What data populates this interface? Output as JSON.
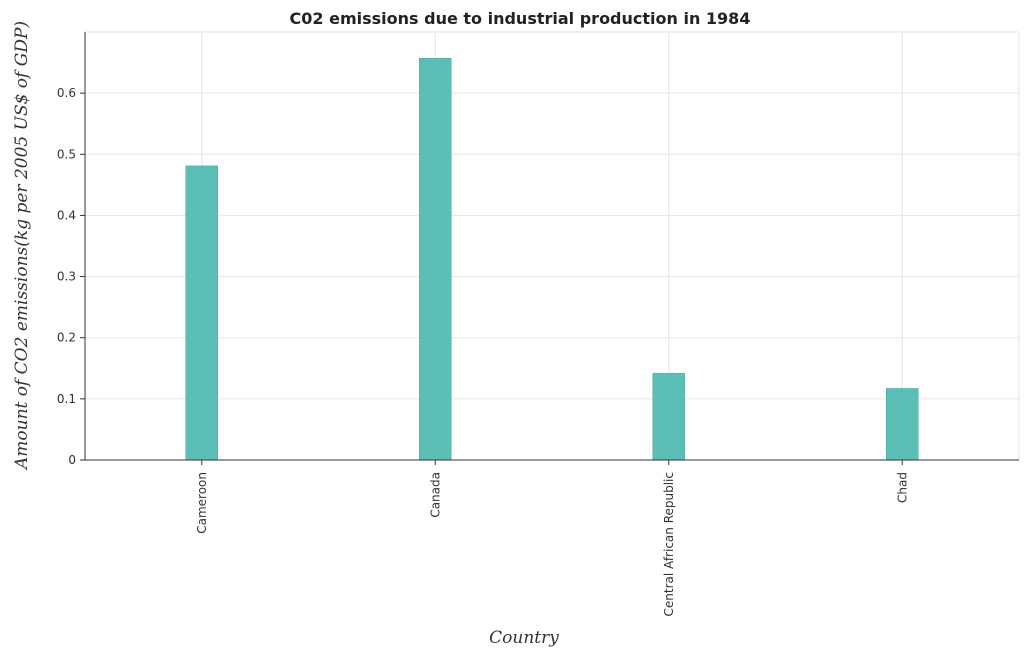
{
  "chart_data": {
    "type": "bar",
    "title": "C02 emissions due to industrial production in 1984",
    "xlabel": "Country",
    "ylabel": "Amount of CO2 emissions(kg per 2005 US$ of GDP)",
    "categories": [
      "Cameroon",
      "Canada",
      "Central African Republic",
      "Chad"
    ],
    "values": [
      0.481,
      0.657,
      0.142,
      0.117
    ],
    "ylim": [
      0,
      0.7
    ],
    "yticks": [
      "0",
      "0.1",
      "0.2",
      "0.3",
      "0.4",
      "0.5",
      "0.6"
    ],
    "grid": true,
    "bar_color": "#5cbfb5"
  }
}
